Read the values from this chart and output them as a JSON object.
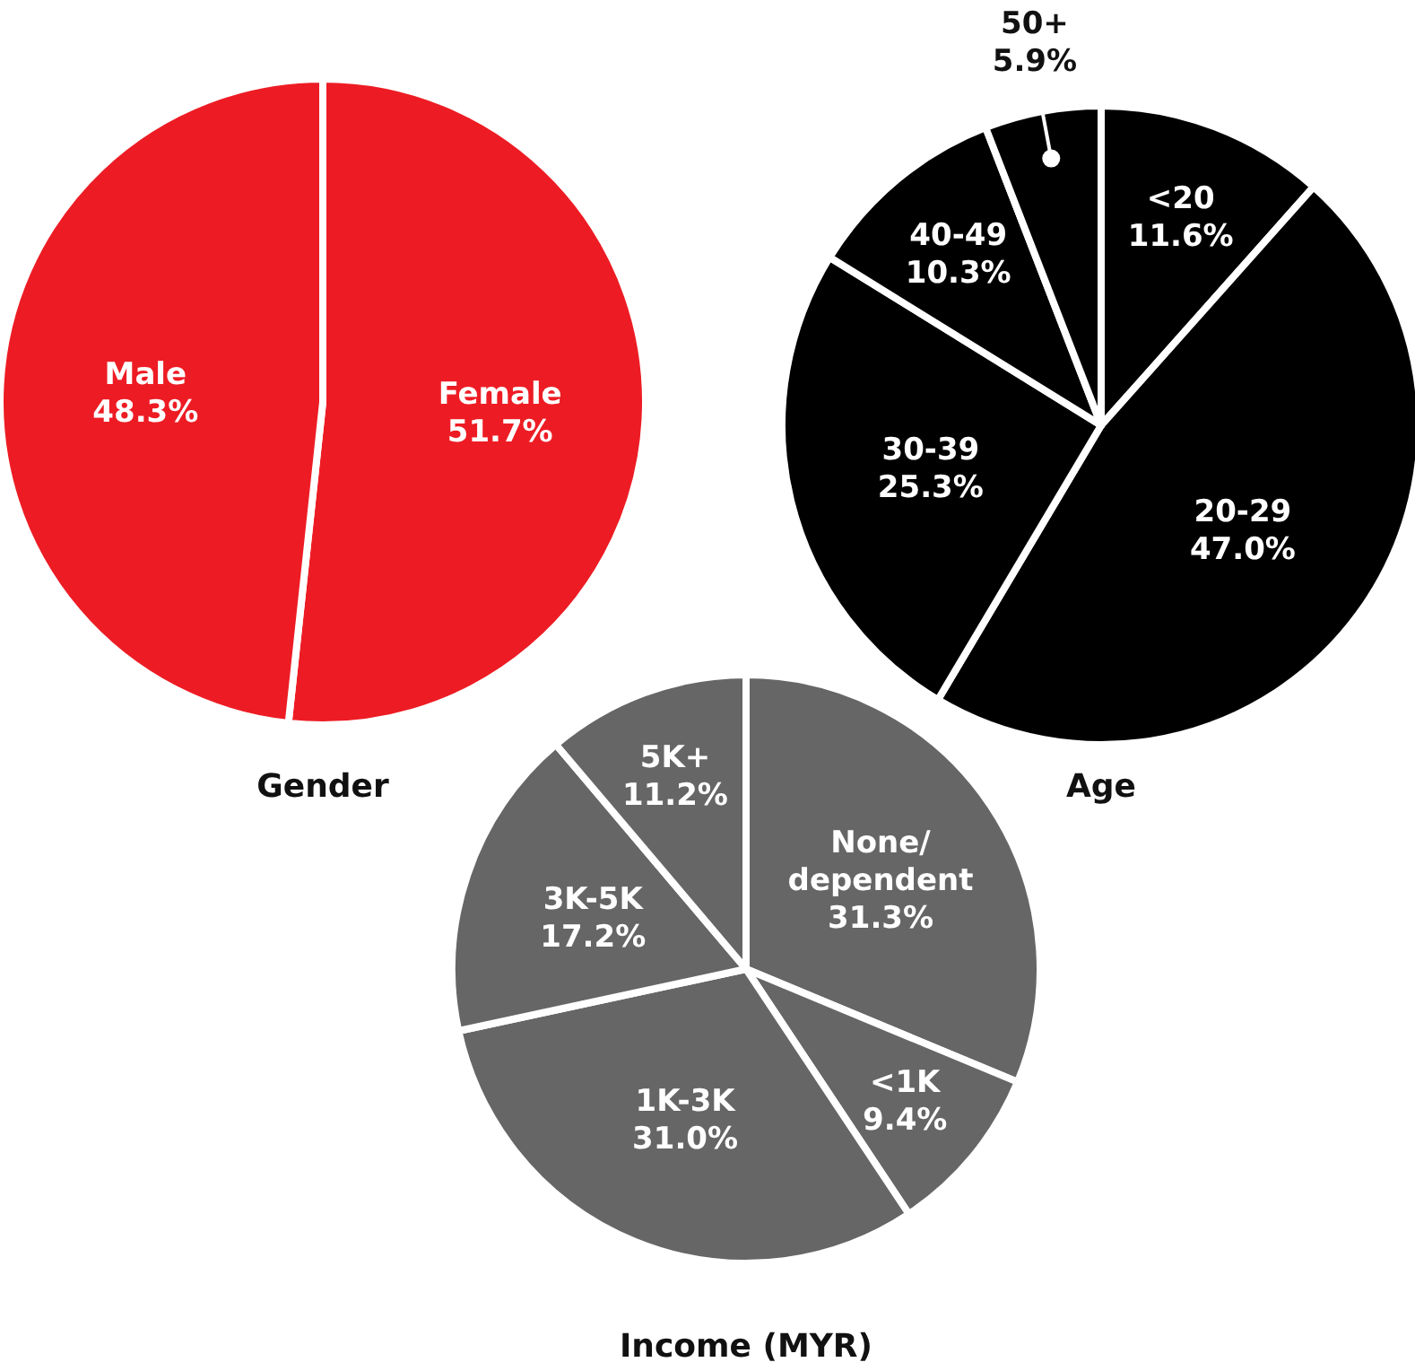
{
  "chart_data": [
    {
      "type": "pie",
      "title": "Gender",
      "categories": [
        "Female",
        "Male"
      ],
      "values": [
        51.7,
        48.3
      ],
      "value_labels": [
        "51.7%",
        "48.3%"
      ],
      "colors": [
        "#ed1c24",
        "#ed1c24"
      ]
    },
    {
      "type": "pie",
      "title": "Age",
      "categories": [
        "<20",
        "20-29",
        "30-39",
        "40-49",
        "50+"
      ],
      "values": [
        11.6,
        47.0,
        25.3,
        10.3,
        5.9
      ],
      "value_labels": [
        "11.6%",
        "47.0%",
        "25.3%",
        "10.3%",
        "5.9%"
      ],
      "colors": [
        "#000000",
        "#000000",
        "#000000",
        "#000000",
        "#000000"
      ]
    },
    {
      "type": "pie",
      "title": "Income (MYR)",
      "categories": [
        "None/dependent",
        "<1K",
        "1K-3K",
        "3K-5K",
        "5K+"
      ],
      "values": [
        31.3,
        9.4,
        31.0,
        17.2,
        11.2
      ],
      "value_labels": [
        "31.3%",
        "9.4%",
        "31.0%",
        "17.2%",
        "11.2%"
      ],
      "colors": [
        "#666666",
        "#666666",
        "#666666",
        "#666666",
        "#666666"
      ]
    }
  ]
}
